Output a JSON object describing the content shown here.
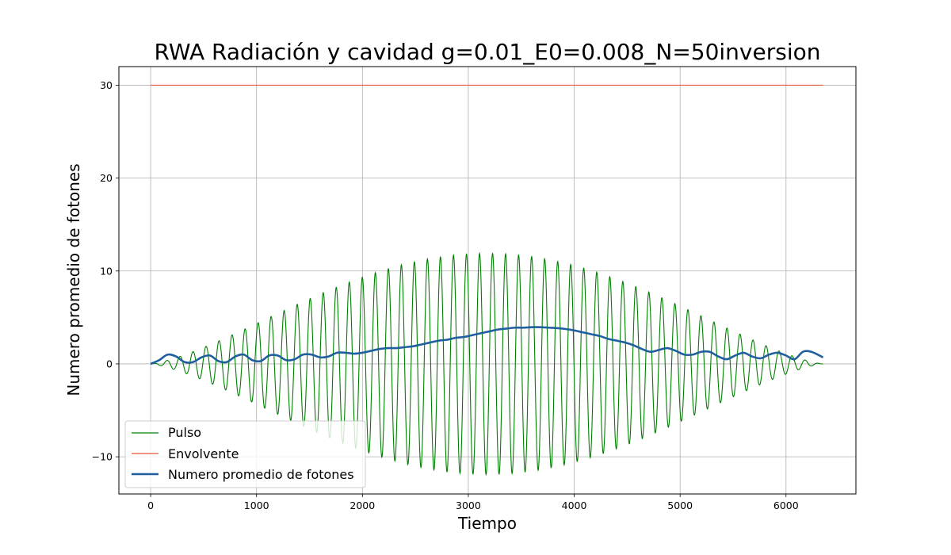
{
  "chart_data": {
    "type": "line",
    "title": "RWA Radiación y cavidad g=0.01_E0=0.008_N=50inversion",
    "xlabel": "Tiempo",
    "ylabel": "Numero promedio de fotones",
    "xlim": [
      -300,
      6660
    ],
    "ylim": [
      -14,
      32
    ],
    "xticks": [
      0,
      1000,
      2000,
      3000,
      4000,
      5000,
      6000
    ],
    "yticks": [
      -10,
      0,
      10,
      20,
      30
    ],
    "grid": true,
    "legend_position": "lower-left",
    "series": [
      {
        "name": "Pulso",
        "color": "#008000",
        "line_width": "thin",
        "description_values": {
          "t_start": 0,
          "t_end": 6350,
          "period": 123,
          "envelope_peak": 11.9,
          "envelope_peak_time": 3175
        }
      },
      {
        "name": "Envolvente",
        "color": "#e8553f",
        "line_width": "thin",
        "x": [
          0,
          6350
        ],
        "y": [
          30,
          30
        ]
      },
      {
        "name": "Numero promedio de fotones",
        "color": "#1f5f9e",
        "line_width": "thick",
        "x": [
          0,
          80,
          160,
          240,
          320,
          400,
          480,
          560,
          640,
          720,
          800,
          880,
          960,
          1040,
          1120,
          1200,
          1280,
          1360,
          1440,
          1520,
          1600,
          1680,
          1760,
          1840,
          1920,
          2000,
          2080,
          2160,
          2240,
          2320,
          2400,
          2480,
          2560,
          2640,
          2720,
          2800,
          2880,
          2960,
          3040,
          3120,
          3200,
          3280,
          3360,
          3440,
          3520,
          3600,
          3680,
          3760,
          3840,
          3920,
          4000,
          4080,
          4160,
          4240,
          4320,
          4400,
          4480,
          4560,
          4640,
          4720,
          4800,
          4880,
          4960,
          5040,
          5120,
          5200,
          5280,
          5360,
          5440,
          5520,
          5600,
          5680,
          5760,
          5840,
          5920,
          6000,
          6080,
          6160,
          6240,
          6350
        ],
        "y": [
          0.0,
          0.4,
          1.0,
          0.8,
          0.2,
          0.2,
          0.7,
          0.9,
          0.3,
          0.2,
          0.8,
          1.0,
          0.4,
          0.3,
          0.9,
          0.9,
          0.4,
          0.5,
          1.0,
          1.0,
          0.7,
          0.8,
          1.2,
          1.2,
          1.1,
          1.2,
          1.4,
          1.6,
          1.7,
          1.7,
          1.8,
          1.9,
          2.1,
          2.3,
          2.5,
          2.6,
          2.8,
          2.9,
          3.1,
          3.3,
          3.5,
          3.7,
          3.8,
          3.9,
          3.9,
          3.95,
          3.95,
          3.9,
          3.85,
          3.75,
          3.6,
          3.4,
          3.2,
          3.0,
          2.7,
          2.5,
          2.3,
          2.0,
          1.6,
          1.3,
          1.5,
          1.7,
          1.4,
          1.0,
          1.0,
          1.3,
          1.3,
          0.8,
          0.5,
          0.9,
          1.2,
          0.8,
          0.6,
          1.0,
          1.2,
          0.9,
          0.5,
          1.3,
          1.3,
          0.7
        ]
      }
    ]
  }
}
